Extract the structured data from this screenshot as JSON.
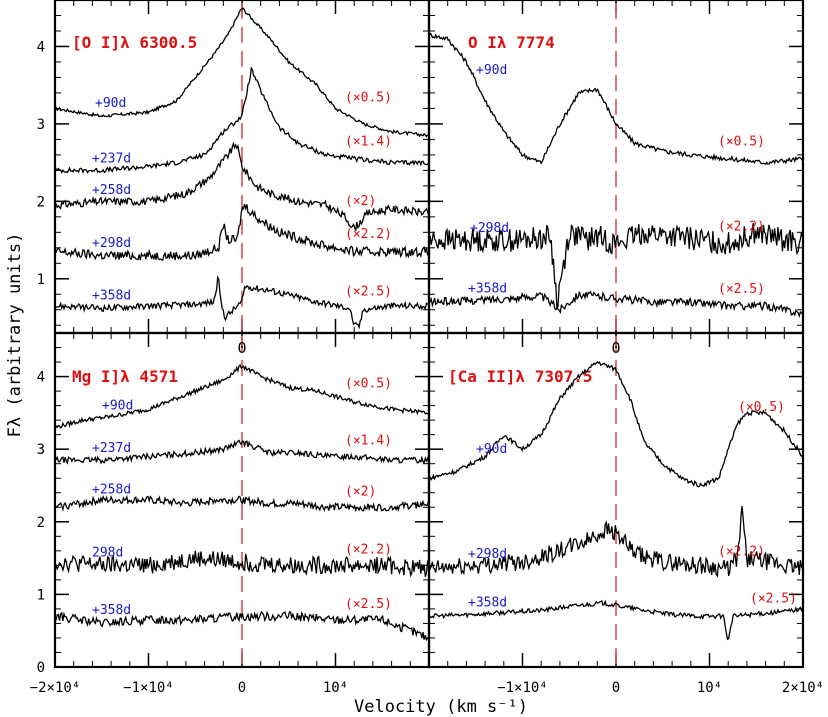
{
  "figure": {
    "xlabel": "Velocity (km s⁻¹)",
    "ylabel": "Fλ (arbitrary units)",
    "xticks_bottom_left": [
      "−2×10⁴",
      "−1×10⁴",
      "0",
      "10⁴"
    ],
    "xticks_bottom_right": [
      "−1×10⁴",
      "0",
      "10⁴",
      "2×10⁴"
    ],
    "yticks_top": [
      "1",
      "2",
      "3",
      "4"
    ],
    "yticks_bottom": [
      "0",
      "1",
      "2",
      "3",
      "4"
    ],
    "zero_marker": "0",
    "colors": {
      "line": "#000000",
      "epoch": "#1a1acc",
      "scale": "#dd1111",
      "zero_line": "#e05050"
    }
  },
  "chart_data": [
    {
      "type": "line",
      "title": "[O I]λ 6300.5",
      "xlim": [
        -20000,
        20000
      ],
      "ylim": [
        0.3,
        4.6
      ],
      "series": [
        {
          "name": "+90d",
          "scale_label": "(×0.5)",
          "x": [
            -20000,
            -15000,
            -10000,
            -7000,
            -5000,
            -3000,
            -1500,
            0,
            1500,
            3000,
            5000,
            8000,
            10000,
            13000,
            16000,
            20000
          ],
          "y": [
            3.2,
            3.1,
            3.15,
            3.3,
            3.6,
            3.9,
            4.15,
            4.5,
            4.3,
            4.1,
            3.8,
            3.5,
            3.2,
            3.0,
            2.9,
            2.85
          ]
        },
        {
          "name": "+237d",
          "scale_label": "(×1.4)",
          "x": [
            -20000,
            -15000,
            -10000,
            -7000,
            -4000,
            -2000,
            0,
            1000,
            2500,
            4000,
            6000,
            9000,
            12000,
            16000,
            20000
          ],
          "y": [
            2.4,
            2.4,
            2.45,
            2.5,
            2.6,
            2.9,
            3.1,
            3.7,
            3.3,
            2.95,
            2.75,
            2.6,
            2.55,
            2.5,
            2.5
          ]
        },
        {
          "name": "+258d",
          "scale_label": "(×2)",
          "x": [
            -20000,
            -15000,
            -10000,
            -6000,
            -3500,
            -1500,
            -600,
            0,
            1500,
            3000,
            6000,
            9000,
            11000,
            12000,
            13500,
            16000,
            20000
          ],
          "y": [
            1.95,
            2.0,
            2.0,
            2.1,
            2.3,
            2.6,
            2.75,
            2.45,
            2.2,
            2.1,
            2.0,
            1.95,
            1.8,
            1.65,
            1.85,
            1.9,
            1.85
          ]
        },
        {
          "name": "+298d",
          "scale_label": "(×2.2)",
          "x": [
            -20000,
            -15000,
            -10000,
            -5000,
            -2500,
            -2000,
            -1500,
            -500,
            0,
            300,
            1500,
            4000,
            8000,
            12000,
            16000,
            20000
          ],
          "y": [
            1.35,
            1.3,
            1.3,
            1.3,
            1.4,
            1.7,
            1.5,
            1.5,
            1.9,
            1.95,
            1.8,
            1.6,
            1.45,
            1.35,
            1.35,
            1.35
          ]
        },
        {
          "name": "+358d",
          "scale_label": "(×2.5)",
          "x": [
            -20000,
            -15000,
            -10000,
            -5000,
            -3000,
            -2500,
            -2300,
            -1800,
            0,
            300,
            3000,
            8000,
            11500,
            12000,
            12500,
            13000,
            16000,
            20000
          ],
          "y": [
            0.65,
            0.62,
            0.65,
            0.67,
            0.7,
            1.05,
            0.7,
            0.5,
            0.7,
            0.9,
            0.85,
            0.7,
            0.62,
            0.4,
            0.38,
            0.6,
            0.65,
            0.65
          ]
        }
      ]
    },
    {
      "type": "line",
      "title": "O Iλ 7774",
      "xlim": [
        -20000,
        20000
      ],
      "ylim": [
        0.3,
        4.6
      ],
      "series": [
        {
          "name": "+90d",
          "scale_label": "(×0.5)",
          "x": [
            -20000,
            -18000,
            -16000,
            -14000,
            -12000,
            -10000,
            -8000,
            -6000,
            -4000,
            -2000,
            0,
            2000,
            5000,
            8000,
            12000,
            16000,
            20000
          ],
          "y": [
            4.15,
            4.1,
            3.8,
            3.3,
            2.9,
            2.6,
            2.5,
            3.0,
            3.4,
            3.45,
            3.0,
            2.75,
            2.65,
            2.6,
            2.55,
            2.5,
            2.55
          ]
        },
        {
          "name": "+298d",
          "scale_label": "(×2.2)",
          "x": [
            -20000,
            -15000,
            -10000,
            -7000,
            -6300,
            -5000,
            -3000,
            -2000,
            0,
            3000,
            6000,
            9000,
            12000,
            15000,
            18000,
            20000
          ],
          "y": [
            1.5,
            1.5,
            1.5,
            1.55,
            0.7,
            1.6,
            1.5,
            1.55,
            1.45,
            1.6,
            1.55,
            1.5,
            1.45,
            1.6,
            1.5,
            1.45
          ]
        },
        {
          "name": "+358d",
          "scale_label": "(×2.5)",
          "x": [
            -20000,
            -15000,
            -11000,
            -8000,
            -6000,
            -4000,
            0,
            4000,
            8000,
            12000,
            16000,
            20000
          ],
          "y": [
            0.7,
            0.72,
            0.75,
            0.78,
            0.6,
            0.8,
            0.75,
            0.7,
            0.7,
            0.65,
            0.65,
            0.55
          ]
        }
      ]
    },
    {
      "type": "line",
      "title": "Mg I]λ 4571",
      "xlim": [
        -20000,
        20000
      ],
      "ylim": [
        0,
        4.6
      ],
      "series": [
        {
          "name": "+90d",
          "scale_label": "(×0.5)",
          "x": [
            -20000,
            -17000,
            -14000,
            -10000,
            -7000,
            -4000,
            -2000,
            0,
            2000,
            5000,
            8000,
            12000,
            16000,
            20000
          ],
          "y": [
            3.3,
            3.4,
            3.45,
            3.55,
            3.7,
            3.85,
            3.95,
            4.15,
            4.0,
            3.85,
            3.8,
            3.65,
            3.55,
            3.5
          ]
        },
        {
          "name": "+237d",
          "scale_label": "(×1.4)",
          "x": [
            -20000,
            -15000,
            -10000,
            -5000,
            -2000,
            0,
            3000,
            6000,
            9000,
            12000,
            16000,
            20000
          ],
          "y": [
            2.85,
            2.85,
            2.9,
            2.95,
            3.0,
            3.1,
            2.95,
            2.95,
            2.9,
            2.9,
            2.85,
            2.85
          ]
        },
        {
          "name": "+258d",
          "scale_label": "(×2)",
          "x": [
            -20000,
            -15000,
            -10000,
            -6000,
            -3000,
            0,
            3000,
            6000,
            9000,
            12000,
            16000,
            20000
          ],
          "y": [
            2.2,
            2.3,
            2.3,
            2.25,
            2.3,
            2.3,
            2.25,
            2.25,
            2.2,
            2.2,
            2.2,
            2.25
          ]
        },
        {
          "name": "298d",
          "scale_label": "(×2.2)",
          "x": [
            -20000,
            -15000,
            -10000,
            -5000,
            0,
            5000,
            10000,
            15000,
            20000
          ],
          "y": [
            1.45,
            1.4,
            1.4,
            1.5,
            1.45,
            1.4,
            1.4,
            1.4,
            1.35
          ]
        },
        {
          "name": "+358d",
          "scale_label": "(×2.5)",
          "x": [
            -20000,
            -15000,
            -10000,
            -5000,
            0,
            5000,
            10000,
            15000,
            19000,
            20000
          ],
          "y": [
            0.7,
            0.6,
            0.65,
            0.65,
            0.7,
            0.7,
            0.65,
            0.65,
            0.45,
            0.4
          ]
        }
      ]
    },
    {
      "type": "line",
      "title": "[Ca II]λ 7307.5",
      "xlim": [
        -20000,
        20000
      ],
      "ylim": [
        0,
        4.6
      ],
      "series": [
        {
          "name": "+90d",
          "scale_label": "(×0.5)",
          "x": [
            -20000,
            -17000,
            -14000,
            -12000,
            -10000,
            -8000,
            -6000,
            -4000,
            -2000,
            0,
            1500,
            3000,
            5000,
            7000,
            9000,
            11000,
            12000,
            13000,
            14000,
            16000,
            18000,
            20000
          ],
          "y": [
            2.6,
            2.7,
            2.9,
            3.2,
            3.0,
            3.2,
            3.7,
            4.0,
            4.2,
            4.1,
            3.7,
            3.1,
            2.8,
            2.6,
            2.5,
            2.6,
            3.0,
            3.35,
            3.5,
            3.5,
            3.25,
            2.9
          ]
        },
        {
          "name": "+298d",
          "scale_label": "(×2.2)",
          "x": [
            -20000,
            -15000,
            -10000,
            -6000,
            -3000,
            -1000,
            0,
            2000,
            5000,
            9000,
            12000,
            13000,
            13500,
            14000,
            16000,
            20000
          ],
          "y": [
            1.35,
            1.4,
            1.45,
            1.6,
            1.75,
            1.9,
            1.85,
            1.55,
            1.45,
            1.4,
            1.35,
            1.5,
            2.15,
            1.5,
            1.45,
            1.35
          ]
        },
        {
          "name": "+358d",
          "scale_label": "(×2.5)",
          "x": [
            -20000,
            -16000,
            -12000,
            -8000,
            -4000,
            -1500,
            0,
            3000,
            6000,
            9000,
            11500,
            12000,
            12500,
            14000,
            17000,
            20000
          ],
          "y": [
            0.7,
            0.72,
            0.75,
            0.78,
            0.85,
            0.88,
            0.85,
            0.78,
            0.72,
            0.7,
            0.7,
            0.35,
            0.7,
            0.72,
            0.75,
            0.8
          ]
        }
      ]
    }
  ]
}
